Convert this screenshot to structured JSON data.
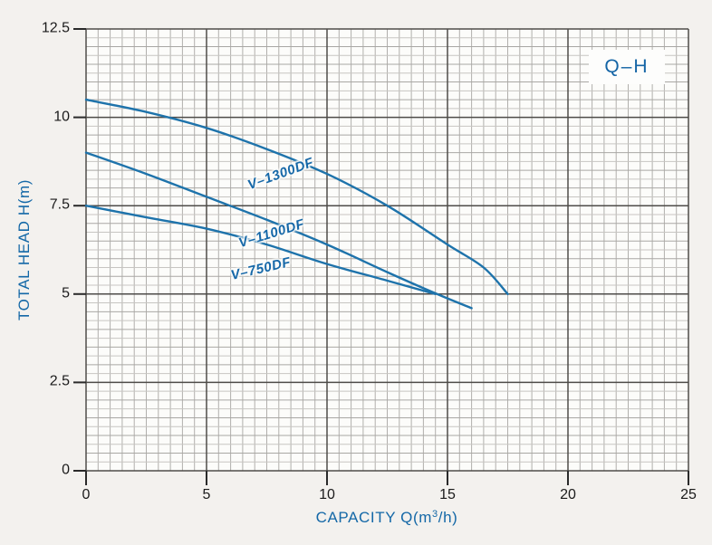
{
  "page": {
    "background": "#f3f1ee"
  },
  "chart_data": {
    "type": "line",
    "corner_label": "Q–H",
    "xlabel": {
      "pre": "CAPACITY Q(m",
      "sup": "3",
      "post": "/h)",
      "full": "CAPACITY Q(m³/h)"
    },
    "ylabel": "TOTAL HEAD H(m)",
    "xlim": [
      0,
      25
    ],
    "ylim": [
      0,
      12.5
    ],
    "xticks": [
      0,
      5,
      10,
      15,
      20,
      25
    ],
    "yticks": [
      0,
      2.5,
      5,
      7.5,
      10,
      12.5
    ],
    "x_minor_step": 0.5,
    "y_minor_step": 0.25,
    "grid": true,
    "legend_position": "labels-on-curves",
    "series": [
      {
        "name": "V–1300DF",
        "points": [
          [
            0,
            10.5
          ],
          [
            2.5,
            10.15
          ],
          [
            5,
            9.7
          ],
          [
            7.5,
            9.1
          ],
          [
            10,
            8.4
          ],
          [
            12.5,
            7.5
          ],
          [
            15,
            6.4
          ],
          [
            16.5,
            5.75
          ],
          [
            17.5,
            5.0
          ]
        ],
        "label_pos": [
          8.1,
          8.4
        ],
        "label_angle_deg": -20
      },
      {
        "name": "V–1100DF",
        "points": [
          [
            0,
            9.0
          ],
          [
            2.5,
            8.4
          ],
          [
            5,
            7.75
          ],
          [
            7.5,
            7.1
          ],
          [
            10,
            6.4
          ],
          [
            12.5,
            5.62
          ],
          [
            14.5,
            5.02
          ],
          [
            16,
            4.6
          ]
        ],
        "label_pos": [
          7.7,
          6.7
        ],
        "label_angle_deg": -17
      },
      {
        "name": "V–750DF",
        "points": [
          [
            0,
            7.5
          ],
          [
            2.5,
            7.17
          ],
          [
            5,
            6.85
          ],
          [
            7.5,
            6.4
          ],
          [
            10,
            5.85
          ],
          [
            12.5,
            5.38
          ],
          [
            14.5,
            5.0
          ]
        ],
        "label_pos": [
          7.25,
          5.7
        ],
        "label_angle_deg": -13
      }
    ],
    "colors": {
      "curve": "#1e73ab",
      "axis_text": "#1b1b1b",
      "title_text": "#1468a7",
      "grid_minor_v": "#b1afac",
      "grid_minor_h_quarter": "#c7c5c2",
      "grid_minor_h_half": "#a9a7a4",
      "grid_major": "#4e4c49",
      "plot_bg": "#fcfcfa",
      "tick_mark": "#2a2a2a"
    }
  }
}
